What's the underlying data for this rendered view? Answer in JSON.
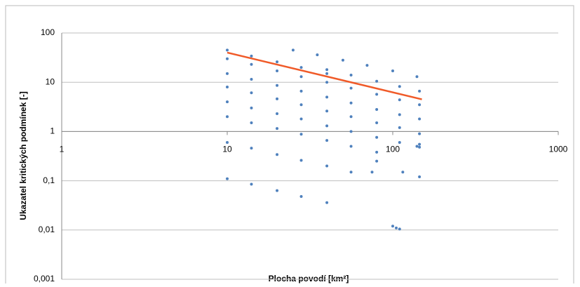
{
  "chart_data": {
    "type": "scatter",
    "xlabel": "Plocha povodí [km²]",
    "ylabel": "Ukazatel kritických podmínek [-]",
    "xlog": true,
    "ylog": true,
    "grid": true,
    "xlim": [
      1,
      1000
    ],
    "ylim": [
      0.001,
      100
    ],
    "xticks": [
      1,
      10,
      100,
      1000
    ],
    "yticks": [
      100,
      10,
      1,
      {
        "value": 0.1,
        "label": "0,1"
      },
      {
        "value": 0.01,
        "label": "0,01"
      },
      {
        "value": 0.001,
        "label": "0,001"
      }
    ],
    "xaxis_at": 1,
    "series": [
      {
        "type": "scatter",
        "color": "#4f81bd",
        "x": [
          10,
          14,
          20,
          28,
          40,
          25,
          35,
          50,
          70,
          100,
          140,
          10,
          14,
          20,
          28,
          40,
          56,
          80,
          110,
          145,
          10,
          14,
          20,
          28,
          40,
          56,
          80,
          110,
          145,
          10,
          14,
          20,
          28,
          40,
          56,
          80,
          110,
          145,
          10,
          14,
          20,
          28,
          40,
          56,
          80,
          110,
          145,
          10,
          14,
          20,
          28,
          40,
          56,
          80,
          10,
          14,
          20,
          28,
          40,
          56,
          10,
          14,
          20,
          28,
          40,
          40,
          56,
          80,
          110,
          145,
          100,
          105,
          110,
          145,
          145,
          140,
          75,
          80,
          115
        ],
        "values": [
          45,
          34,
          26,
          20,
          15,
          45,
          36,
          28,
          22,
          17,
          13,
          30,
          23,
          17,
          13,
          10,
          7.6,
          5.7,
          4.4,
          3.5,
          15,
          11.5,
          8.6,
          6.6,
          5,
          3.8,
          2.8,
          2.2,
          1.8,
          8,
          6.1,
          4.6,
          3.5,
          2.6,
          2,
          1.5,
          1.2,
          0.9,
          4,
          3,
          2.3,
          1.8,
          1.3,
          1,
          0.76,
          0.6,
          0.48,
          2,
          1.5,
          1.15,
          0.88,
          0.66,
          0.5,
          0.38,
          0.6,
          0.46,
          0.34,
          0.26,
          0.2,
          0.15,
          0.11,
          0.085,
          0.063,
          0.048,
          0.036,
          18,
          14,
          10.5,
          8.2,
          6.6,
          0.012,
          0.011,
          0.0105,
          0.12,
          0.55,
          0.5,
          0.15,
          0.25,
          0.15
        ]
      },
      {
        "type": "line",
        "color": "#f05a28",
        "x": [
          10,
          150
        ],
        "values": [
          40,
          4.5
        ]
      }
    ]
  }
}
